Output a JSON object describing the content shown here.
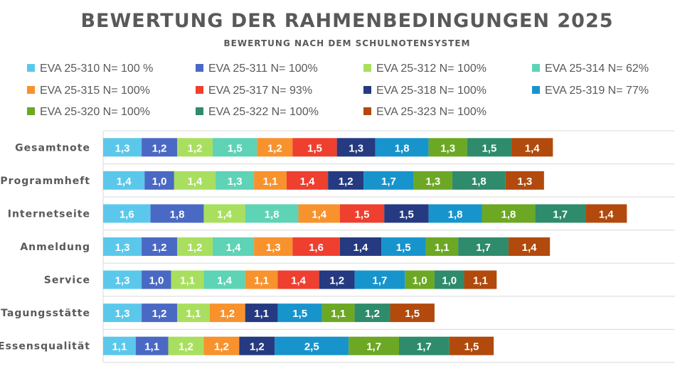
{
  "chart_data": {
    "type": "bar",
    "orientation": "horizontal-stacked",
    "title": "BEWERTUNG DER RAHMENBEDINGUNGEN 2025",
    "subtitle": "BEWERTUNG NACH DEM SCHULNOTENSYSTEM",
    "categories": [
      "Gesamtnote",
      "Programmheft",
      "Internetseite",
      "Anmeldung",
      "Service",
      "Tagungsstätte",
      "Essensqualität"
    ],
    "series": [
      {
        "name": "EVA 25-310",
        "legend_suffix": "N= 100 %",
        "color": "#5BC8EB",
        "values": [
          1.3,
          1.4,
          1.6,
          1.3,
          1.3,
          1.3,
          1.1
        ]
      },
      {
        "name": "EVA 25-311",
        "legend_suffix": "N= 100%",
        "color": "#4A69C4",
        "values": [
          1.2,
          1.0,
          1.8,
          1.2,
          1.0,
          1.2,
          1.1
        ]
      },
      {
        "name": "EVA 25-312",
        "legend_suffix": "N= 100%",
        "color": "#A9DF5E",
        "values": [
          1.2,
          1.4,
          1.4,
          1.2,
          1.1,
          1.1,
          1.2
        ]
      },
      {
        "name": "EVA 25-314",
        "legend_suffix": "N= 62%",
        "color": "#5ED3B5",
        "values": [
          1.5,
          1.3,
          1.8,
          1.4,
          1.4,
          null,
          null
        ]
      },
      {
        "name": "EVA 25-315",
        "legend_suffix": "N= 100%",
        "color": "#F8922D",
        "values": [
          1.2,
          1.1,
          1.4,
          1.3,
          1.1,
          1.2,
          1.2
        ]
      },
      {
        "name": "EVA 25-317",
        "legend_suffix": "N= 93%",
        "color": "#EE3F2F",
        "values": [
          1.5,
          1.4,
          1.5,
          1.6,
          1.4,
          null,
          null
        ]
      },
      {
        "name": "EVA 25-318",
        "legend_suffix": "N= 100%",
        "color": "#253A80",
        "values": [
          1.3,
          1.2,
          1.5,
          1.4,
          1.2,
          1.1,
          1.2
        ]
      },
      {
        "name": "EVA 25-319",
        "legend_suffix": "N= 77%",
        "color": "#1894CC",
        "values": [
          1.8,
          1.7,
          1.8,
          1.5,
          1.7,
          1.5,
          2.5
        ]
      },
      {
        "name": "EVA 25-320",
        "legend_suffix": "N= 100%",
        "color": "#6CA824",
        "values": [
          1.3,
          1.3,
          1.8,
          1.1,
          1.0,
          1.1,
          1.7
        ]
      },
      {
        "name": "EVA 25-322",
        "legend_suffix": "N= 100%",
        "color": "#2E8B6C",
        "values": [
          1.5,
          1.8,
          1.7,
          1.7,
          1.0,
          1.2,
          1.7
        ]
      },
      {
        "name": "EVA 25-323",
        "legend_suffix": "N= 100%",
        "color": "#B14A0C",
        "values": [
          1.4,
          1.3,
          1.4,
          1.4,
          1.1,
          1.5,
          1.5
        ]
      }
    ],
    "data_labels": true,
    "label_decimal": ",",
    "grid": true,
    "legend_position": "top"
  }
}
